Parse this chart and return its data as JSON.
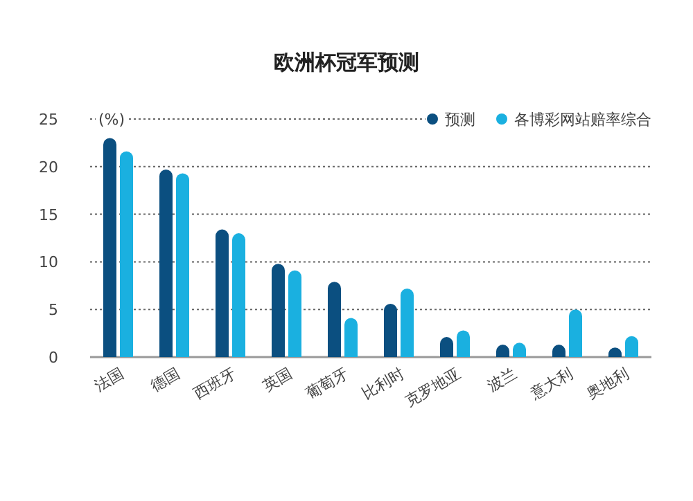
{
  "chart_data": {
    "type": "bar",
    "title": "欧洲杯冠军预测",
    "ylabel": "(%)",
    "categories": [
      "法国",
      "德国",
      "西班牙",
      "英国",
      "葡萄牙",
      "比利时",
      "克罗地亚",
      "波兰",
      "意大利",
      "奥地利"
    ],
    "series": [
      {
        "name": "预测",
        "color": "#0b4f80",
        "values": [
          23.0,
          19.7,
          13.4,
          9.8,
          7.9,
          5.6,
          2.1,
          1.3,
          1.3,
          1.0
        ]
      },
      {
        "name": "各博彩网站赔率综合",
        "color": "#1ab0e0",
        "values": [
          21.6,
          19.3,
          13.0,
          9.1,
          4.1,
          7.2,
          2.8,
          1.5,
          5.0,
          2.2
        ]
      }
    ],
    "ylim": [
      0,
      25
    ],
    "yticks": [
      0,
      5,
      10,
      15,
      20,
      25
    ],
    "grid": "y",
    "legend": "top right"
  }
}
